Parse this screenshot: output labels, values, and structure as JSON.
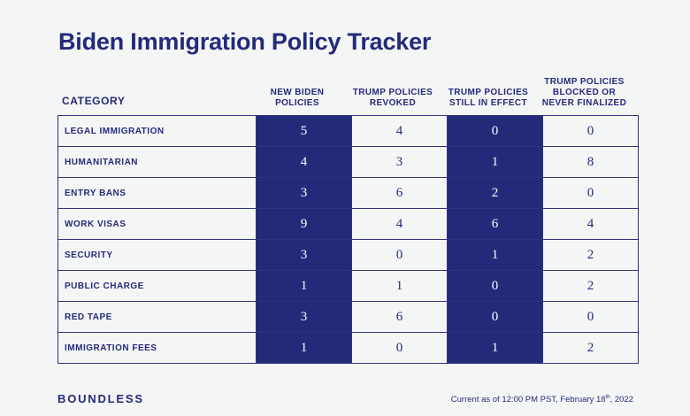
{
  "title": "Biden Immigration Policy Tracker",
  "colors": {
    "navy": "#232a7a",
    "background": "#f4f5f5"
  },
  "brand": "BOUNDLESS",
  "footnote": {
    "prefix": "Current as of 12:00 PM PST, February 18",
    "sup": "th",
    "suffix": ", 2022"
  },
  "chart_data": {
    "type": "table",
    "title": "Biden Immigration Policy Tracker",
    "columns": [
      "CATEGORY",
      "NEW BIDEN POLICIES",
      "TRUMP POLICIES REVOKED",
      "TRUMP POLICIES STILL IN EFFECT",
      "TRUMP POLICIES BLOCKED OR NEVER FINALIZED"
    ],
    "rows": [
      {
        "category": "LEGAL IMMIGRATION",
        "values": [
          5,
          4,
          0,
          0
        ]
      },
      {
        "category": "HUMANITARIAN",
        "values": [
          4,
          3,
          1,
          8
        ]
      },
      {
        "category": "ENTRY BANS",
        "values": [
          3,
          6,
          2,
          0
        ]
      },
      {
        "category": "WORK VISAS",
        "values": [
          9,
          4,
          6,
          4
        ]
      },
      {
        "category": "SECURITY",
        "values": [
          3,
          0,
          1,
          2
        ]
      },
      {
        "category": "PUBLIC CHARGE",
        "values": [
          1,
          1,
          0,
          2
        ]
      },
      {
        "category": "RED TAPE",
        "values": [
          3,
          6,
          0,
          0
        ]
      },
      {
        "category": "IMMIGRATION FEES",
        "values": [
          1,
          0,
          1,
          2
        ]
      }
    ],
    "highlighted_columns": [
      1,
      3
    ]
  }
}
